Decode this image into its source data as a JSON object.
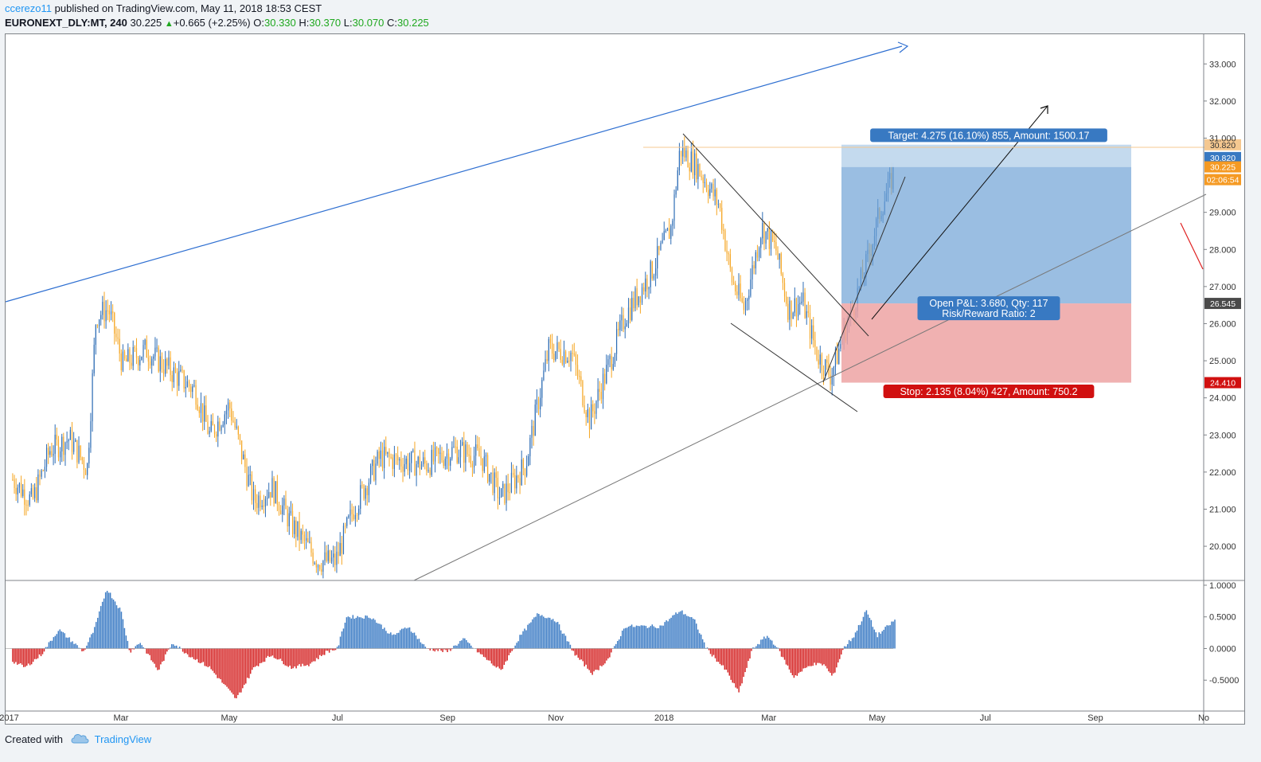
{
  "header": {
    "user": "ccerezo11",
    "published_text": "published on TradingView.com, May 11, 2018 18:53 CEST",
    "symbol": "EURONEXT_DLY:MT, 240",
    "last": "30.225",
    "change": "+0.665 (+2.25%)",
    "o_label": "O:",
    "o_value": "30.330",
    "h_label": "H:",
    "h_value": "30.370",
    "l_label": "L:",
    "l_value": "30.070",
    "c_label": "C:",
    "c_value": "30.225"
  },
  "footer": {
    "created_with": "Created with",
    "brand": "TradingView"
  },
  "colors": {
    "candle_up": "#2e6db5",
    "candle_down": "#f5a623",
    "osc_pos": "#2a6fbf",
    "osc_neg": "#d10f0f",
    "target_zone": "#6fa3d6",
    "stop_zone": "#eda3a3",
    "trend_blue": "#2e6fd1"
  },
  "chart_data": {
    "type": "candlestick",
    "xlabels": [
      "2017",
      "Mar",
      "May",
      "Jul",
      "Sep",
      "Nov",
      "2018",
      "Mar",
      "May",
      "Jul",
      "Sep",
      "No"
    ],
    "price_ticks": [
      "33.000",
      "32.000",
      "31.000",
      "29.000",
      "28.000",
      "27.000",
      "26.000",
      "25.000",
      "24.000",
      "23.000",
      "22.000",
      "21.000",
      "20.000"
    ],
    "ylim": [
      19.1,
      33.8
    ],
    "close_path": [
      [
        "2016-12-30",
        21.8
      ],
      [
        "2017-01-10",
        21.2
      ],
      [
        "2017-01-20",
        22.6
      ],
      [
        "2017-01-31",
        22.9
      ],
      [
        "2017-02-10",
        22.1
      ],
      [
        "2017-02-15",
        26.2
      ],
      [
        "2017-02-22",
        26.4
      ],
      [
        "2017-03-02",
        24.9
      ],
      [
        "2017-03-15",
        25.3
      ],
      [
        "2017-04-01",
        24.6
      ],
      [
        "2017-04-12",
        24.2
      ],
      [
        "2017-04-20",
        23.0
      ],
      [
        "2017-05-01",
        23.8
      ],
      [
        "2017-05-15",
        21.2
      ],
      [
        "2017-05-25",
        21.6
      ],
      [
        "2017-06-05",
        20.6
      ],
      [
        "2017-06-20",
        19.6
      ],
      [
        "2017-06-30",
        19.6
      ],
      [
        "2017-07-10",
        21.0
      ],
      [
        "2017-07-25",
        22.4
      ],
      [
        "2017-08-05",
        22.3
      ],
      [
        "2017-08-20",
        22.2
      ],
      [
        "2017-09-05",
        22.6
      ],
      [
        "2017-09-20",
        22.4
      ],
      [
        "2017-10-01",
        21.3
      ],
      [
        "2017-10-15",
        22.2
      ],
      [
        "2017-10-28",
        25.3
      ],
      [
        "2017-11-10",
        25.2
      ],
      [
        "2017-11-20",
        23.4
      ],
      [
        "2017-12-01",
        24.9
      ],
      [
        "2017-12-10",
        26.2
      ],
      [
        "2017-12-25",
        27.4
      ],
      [
        "2018-01-05",
        28.6
      ],
      [
        "2018-01-10",
        30.7
      ],
      [
        "2018-01-20",
        30.2
      ],
      [
        "2018-02-01",
        29.2
      ],
      [
        "2018-02-08",
        27.2
      ],
      [
        "2018-02-15",
        26.4
      ],
      [
        "2018-02-25",
        28.6
      ],
      [
        "2018-03-05",
        28.0
      ],
      [
        "2018-03-12",
        26.4
      ],
      [
        "2018-03-20",
        26.6
      ],
      [
        "2018-03-28",
        25.2
      ],
      [
        "2018-04-05",
        24.6
      ],
      [
        "2018-04-12",
        25.7
      ],
      [
        "2018-04-18",
        26.5
      ],
      [
        "2018-04-25",
        27.6
      ],
      [
        "2018-05-03",
        29.1
      ],
      [
        "2018-05-08",
        29.7
      ],
      [
        "2018-05-11",
        30.225
      ]
    ],
    "oscillator": {
      "ylim": [
        -0.95,
        1.05
      ],
      "ticks": [
        "1.0000",
        "0.5000",
        "0.0000",
        "-0.5000"
      ],
      "path": [
        [
          "2016-12-30",
          -0.2
        ],
        [
          "2017-01-06",
          -0.3
        ],
        [
          "2017-01-15",
          -0.1
        ],
        [
          "2017-01-25",
          0.3
        ],
        [
          "2017-02-02",
          0.1
        ],
        [
          "2017-02-08",
          -0.05
        ],
        [
          "2017-02-14",
          0.3
        ],
        [
          "2017-02-21",
          0.95
        ],
        [
          "2017-03-01",
          0.6
        ],
        [
          "2017-03-06",
          -0.05
        ],
        [
          "2017-03-12",
          0.1
        ],
        [
          "2017-03-22",
          -0.35
        ],
        [
          "2017-03-30",
          0.1
        ],
        [
          "2017-04-08",
          -0.1
        ],
        [
          "2017-04-20",
          -0.3
        ],
        [
          "2017-05-05",
          -0.8
        ],
        [
          "2017-05-15",
          -0.3
        ],
        [
          "2017-05-25",
          -0.1
        ],
        [
          "2017-06-05",
          -0.3
        ],
        [
          "2017-06-15",
          -0.25
        ],
        [
          "2017-06-25",
          -0.05
        ],
        [
          "2017-07-01",
          0.0
        ],
        [
          "2017-07-06",
          0.5
        ],
        [
          "2017-07-20",
          0.5
        ],
        [
          "2017-08-01",
          0.2
        ],
        [
          "2017-08-10",
          0.35
        ],
        [
          "2017-08-20",
          0.0
        ],
        [
          "2017-09-01",
          -0.05
        ],
        [
          "2017-09-10",
          0.15
        ],
        [
          "2017-09-20",
          -0.1
        ],
        [
          "2017-10-01",
          -0.35
        ],
        [
          "2017-10-12",
          0.2
        ],
        [
          "2017-10-22",
          0.55
        ],
        [
          "2017-11-01",
          0.45
        ],
        [
          "2017-11-12",
          -0.1
        ],
        [
          "2017-11-22",
          -0.4
        ],
        [
          "2017-12-01",
          -0.15
        ],
        [
          "2017-12-10",
          0.35
        ],
        [
          "2017-12-20",
          0.35
        ],
        [
          "2017-12-30",
          0.35
        ],
        [
          "2018-01-10",
          0.6
        ],
        [
          "2018-01-18",
          0.45
        ],
        [
          "2018-01-25",
          0.0
        ],
        [
          "2018-02-05",
          -0.35
        ],
        [
          "2018-02-12",
          -0.7
        ],
        [
          "2018-02-20",
          0.0
        ],
        [
          "2018-02-28",
          0.2
        ],
        [
          "2018-03-05",
          0.05
        ],
        [
          "2018-03-15",
          -0.45
        ],
        [
          "2018-03-25",
          -0.25
        ],
        [
          "2018-04-01",
          -0.25
        ],
        [
          "2018-04-06",
          -0.45
        ],
        [
          "2018-04-12",
          0.0
        ],
        [
          "2018-04-18",
          0.2
        ],
        [
          "2018-04-25",
          0.6
        ],
        [
          "2018-05-01",
          0.2
        ],
        [
          "2018-05-11",
          0.45
        ]
      ]
    },
    "levels": {
      "target": "30.820",
      "entry": "26.545",
      "stop": "24.410",
      "last": "30.225",
      "countdown": "02:06:54"
    },
    "position": {
      "target_text": "Target: 4.275 (16.10%) 855, Amount: 1500.17",
      "pnl_text": "Open P&L: 3.680, Qty: 117",
      "rr_text": "Risk/Reward Ratio: 2",
      "stop_text": "Stop: 2.135 (8.04%) 427, Amount: 750.2"
    }
  }
}
